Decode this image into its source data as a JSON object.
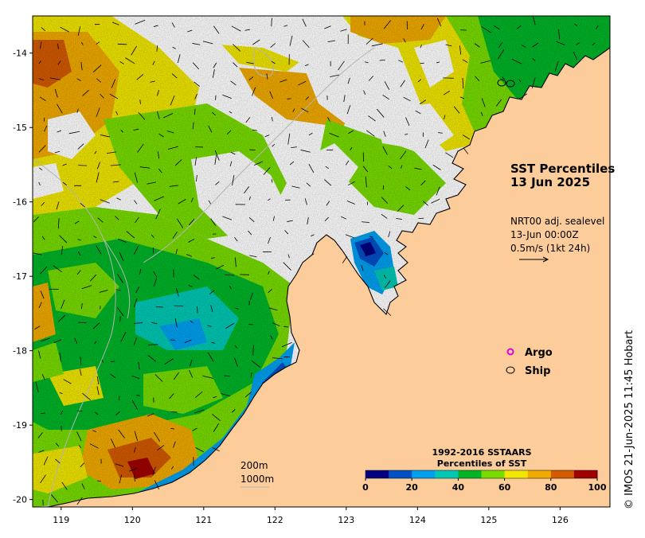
{
  "title": {
    "line1": "SST Percentiles",
    "line2": "13 Jun 2025"
  },
  "currents": {
    "line1": "NRT00 adj. sealevel",
    "line2": "13-Jun 00:00Z",
    "line3": "0.5m/s (1kt 24h)"
  },
  "legend": {
    "argo": "Argo",
    "ship": "Ship",
    "argo_color": "#e000e0"
  },
  "contours": {
    "shallow": "200m",
    "deep": "1000m"
  },
  "colorbar": {
    "title1": "1992-2016 SSTAARS",
    "title2": "Percentiles of SST",
    "ticks": [
      "0",
      "20",
      "40",
      "60",
      "80",
      "100"
    ],
    "colors": [
      "#000080",
      "#0050c8",
      "#00a0f0",
      "#00c8b4",
      "#00b428",
      "#78dc00",
      "#f0e600",
      "#f0aa00",
      "#d25a00",
      "#a00000"
    ]
  },
  "credit": "© IMOS 21-Jun-2025 11:45 Hobart",
  "axes": {
    "x_ticks": [
      "119",
      "120",
      "121",
      "122",
      "123",
      "124",
      "125",
      "126"
    ],
    "y_ticks": [
      "-14",
      "-15",
      "-16",
      "-17",
      "-18",
      "-19",
      "-20"
    ],
    "lon_range": [
      118.6,
      126.7
    ],
    "lat_range": [
      -20.1,
      -13.5
    ]
  },
  "colors": {
    "land": "#fccc9a",
    "cloud": "#ffffff",
    "coast": "#000000",
    "isobath": "#b4b4b4"
  }
}
